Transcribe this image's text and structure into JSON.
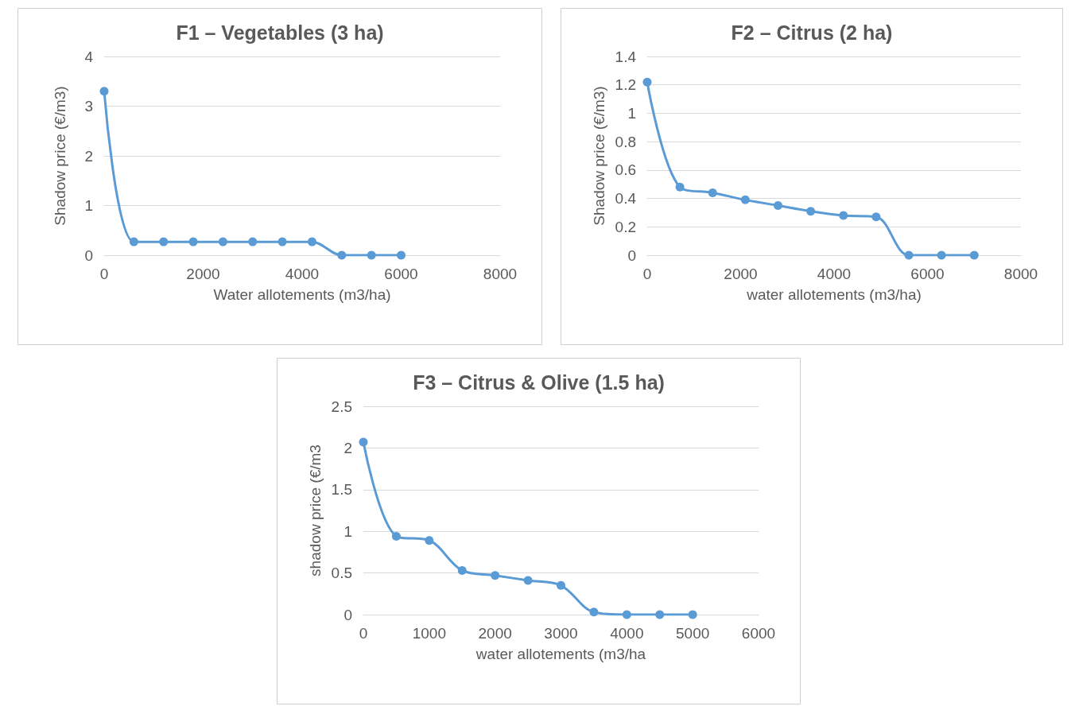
{
  "chart_data": [
    {
      "type": "line",
      "title": "F1 – Vegetables (3 ha)",
      "xlabel": "Water allotements (m3/ha)",
      "ylabel": "Shadow price (€/m3)",
      "x": [
        0,
        600,
        1200,
        1800,
        2400,
        3000,
        3600,
        4200,
        4800,
        5400,
        6000
      ],
      "series": [
        {
          "color": "#5b9bd5",
          "values": [
            3.3,
            0.27,
            0.27,
            0.27,
            0.27,
            0.27,
            0.27,
            0.27,
            0,
            0,
            0
          ]
        }
      ],
      "xlim": [
        0,
        8000
      ],
      "xticks": [
        0,
        2000,
        4000,
        6000,
        8000
      ],
      "ylim": [
        0,
        4
      ],
      "yticks": [
        0,
        1,
        2,
        3,
        4
      ],
      "grid": "y",
      "marker": "circle",
      "line_style": "solid"
    },
    {
      "type": "line",
      "title": "F2 – Citrus (2 ha)",
      "xlabel": "water allotements (m3/ha)",
      "ylabel": "Shadow price (€/m3)",
      "x": [
        0,
        700,
        1400,
        2100,
        2800,
        3500,
        4200,
        4900,
        5600,
        6300,
        7000
      ],
      "series": [
        {
          "color": "#5b9bd5",
          "values": [
            1.22,
            0.48,
            0.44,
            0.39,
            0.35,
            0.31,
            0.28,
            0.27,
            0,
            0,
            0
          ]
        }
      ],
      "xlim": [
        0,
        8000
      ],
      "xticks": [
        0,
        2000,
        4000,
        6000,
        8000
      ],
      "ylim": [
        0,
        1.4
      ],
      "yticks": [
        0,
        0.2,
        0.4,
        0.6,
        0.8,
        1,
        1.2,
        1.4
      ],
      "grid": "y",
      "marker": "circle",
      "line_style": "solid"
    },
    {
      "type": "line",
      "title": "F3 – Citrus & Olive (1.5 ha)",
      "xlabel": "water allotements (m3/ha",
      "ylabel": "shadow price (€/m3",
      "x": [
        0,
        500,
        1000,
        1500,
        2000,
        2500,
        3000,
        3500,
        4000,
        4500,
        5000
      ],
      "series": [
        {
          "color": "#5b9bd5",
          "values": [
            2.07,
            0.94,
            0.89,
            0.53,
            0.47,
            0.41,
            0.35,
            0.03,
            0,
            0,
            0
          ]
        }
      ],
      "xlim": [
        0,
        6000
      ],
      "xticks": [
        0,
        1000,
        2000,
        3000,
        4000,
        5000,
        6000
      ],
      "ylim": [
        0,
        2.5
      ],
      "yticks": [
        0,
        0.5,
        1,
        1.5,
        2,
        2.5
      ],
      "grid": "y",
      "marker": "circle",
      "line_style": "solid"
    }
  ]
}
